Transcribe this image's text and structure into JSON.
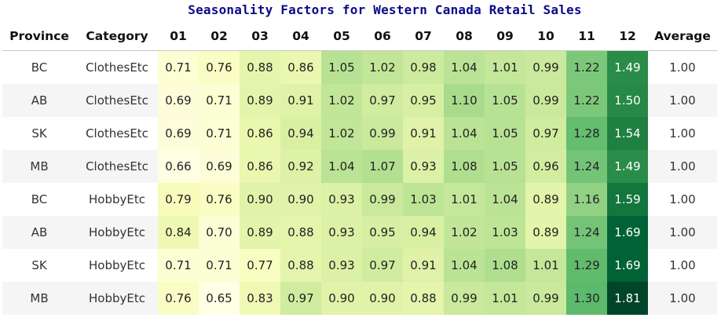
{
  "chart_data": {
    "type": "heatmap",
    "title": "Seasonality Factors for Western Canada Retail Sales",
    "columns": [
      "Province",
      "Category",
      "01",
      "02",
      "03",
      "04",
      "05",
      "06",
      "07",
      "08",
      "09",
      "10",
      "11",
      "12",
      "Average"
    ],
    "months": [
      "01",
      "02",
      "03",
      "04",
      "05",
      "06",
      "07",
      "08",
      "09",
      "10",
      "11",
      "12"
    ],
    "colormap": "YlGn",
    "rows": [
      {
        "province": "BC",
        "category": "ClothesEtc",
        "values": [
          "0.71",
          "0.76",
          "0.88",
          "0.86",
          "1.05",
          "1.02",
          "0.98",
          "1.04",
          "1.01",
          "0.99",
          "1.22",
          "1.49"
        ],
        "average": "1.00"
      },
      {
        "province": "AB",
        "category": "ClothesEtc",
        "values": [
          "0.69",
          "0.71",
          "0.89",
          "0.91",
          "1.02",
          "0.97",
          "0.95",
          "1.10",
          "1.05",
          "0.99",
          "1.22",
          "1.50"
        ],
        "average": "1.00"
      },
      {
        "province": "SK",
        "category": "ClothesEtc",
        "values": [
          "0.69",
          "0.71",
          "0.86",
          "0.94",
          "1.02",
          "0.99",
          "0.91",
          "1.04",
          "1.05",
          "0.97",
          "1.28",
          "1.54"
        ],
        "average": "1.00"
      },
      {
        "province": "MB",
        "category": "ClothesEtc",
        "values": [
          "0.66",
          "0.69",
          "0.86",
          "0.92",
          "1.04",
          "1.07",
          "0.93",
          "1.08",
          "1.05",
          "0.96",
          "1.24",
          "1.49"
        ],
        "average": "1.00"
      },
      {
        "province": "BC",
        "category": "HobbyEtc",
        "values": [
          "0.79",
          "0.76",
          "0.90",
          "0.90",
          "0.93",
          "0.99",
          "1.03",
          "1.01",
          "1.04",
          "0.89",
          "1.16",
          "1.59"
        ],
        "average": "1.00"
      },
      {
        "province": "AB",
        "category": "HobbyEtc",
        "values": [
          "0.84",
          "0.70",
          "0.89",
          "0.88",
          "0.93",
          "0.95",
          "0.94",
          "1.02",
          "1.03",
          "0.89",
          "1.24",
          "1.69"
        ],
        "average": "1.00"
      },
      {
        "province": "SK",
        "category": "HobbyEtc",
        "values": [
          "0.71",
          "0.71",
          "0.77",
          "0.88",
          "0.93",
          "0.97",
          "0.91",
          "1.04",
          "1.08",
          "1.01",
          "1.29",
          "1.69"
        ],
        "average": "1.00"
      },
      {
        "province": "MB",
        "category": "HobbyEtc",
        "values": [
          "0.76",
          "0.65",
          "0.83",
          "0.97",
          "0.90",
          "0.90",
          "0.88",
          "0.99",
          "1.01",
          "0.99",
          "1.30",
          "1.81"
        ],
        "average": "1.00"
      }
    ]
  }
}
